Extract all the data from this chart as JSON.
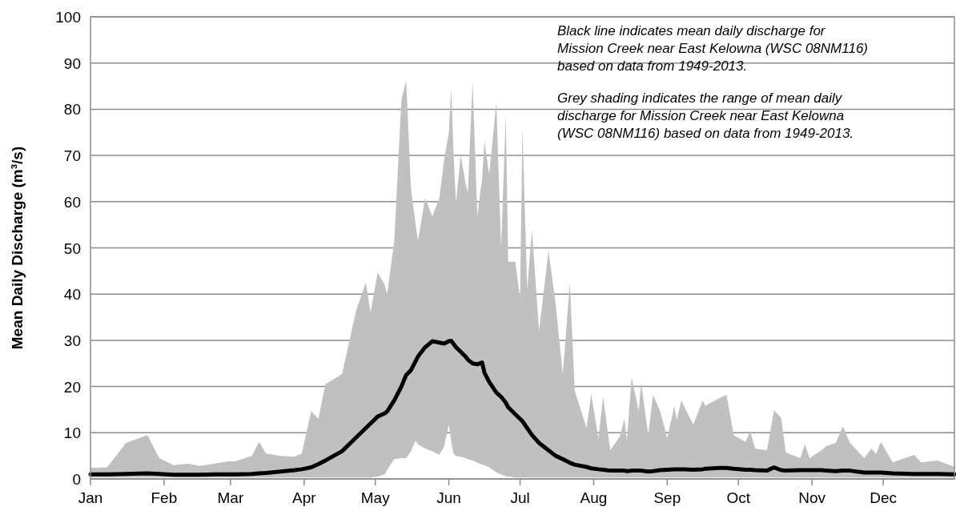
{
  "chart_data": {
    "type": "line",
    "ylabel": "Mean Daily Discharge (m³/s)",
    "annotations": [
      "Black line indicates mean daily discharge for Mission Creek near East Kelowna (WSC 08NM116) based on data from 1949-2013.",
      "Grey shading indicates the range of mean daily discharge for Mission Creek near East Kelowna (WSC 08NM116) based on data from 1949-2013."
    ],
    "xlim": [
      "--01-01",
      "--12-31"
    ],
    "xticks": [
      {
        "value": "--01-01",
        "label": "Jan"
      },
      {
        "value": "--02-01",
        "label": "Feb"
      },
      {
        "value": "--03-01",
        "label": "Mar"
      },
      {
        "value": "--04-01",
        "label": "Apr"
      },
      {
        "value": "--05-01",
        "label": "May"
      },
      {
        "value": "--06-01",
        "label": "Jun"
      },
      {
        "value": "--07-01",
        "label": "Jul"
      },
      {
        "value": "--08-01",
        "label": "Aug"
      },
      {
        "value": "--09-01",
        "label": "Sep"
      },
      {
        "value": "--10-01",
        "label": "Oct"
      },
      {
        "value": "--11-01",
        "label": "Nov"
      },
      {
        "value": "--12-01",
        "label": "Dec"
      }
    ],
    "ylim": [
      0,
      100
    ],
    "yticks": [
      0,
      10,
      20,
      30,
      40,
      50,
      60,
      70,
      80,
      90,
      100
    ],
    "grid": "y",
    "marker": "none",
    "line_style": "solid",
    "series": [
      {
        "color": "#000000",
        "x": [
          "--01-01",
          "--01-08",
          "--01-16",
          "--01-25",
          "--01-30",
          "--02-05",
          "--02-11",
          "--02-16",
          "--02-22",
          "--02-28",
          "--03-03",
          "--03-10",
          "--03-13",
          "--03-16",
          "--03-22",
          "--03-28",
          "--03-31",
          "--04-04",
          "--04-07",
          "--04-10",
          "--04-17",
          "--04-23",
          "--04-27",
          "--04-29",
          "--05-02",
          "--05-05",
          "--05-06",
          "--05-09",
          "--05-12",
          "--05-14",
          "--05-16",
          "--05-18",
          "--05-19",
          "--05-22",
          "--05-25",
          "--05-28",
          "--05-30",
          "--06-01",
          "--06-02",
          "--06-03",
          "--06-04",
          "--06-06",
          "--06-08",
          "--06-09",
          "--06-11",
          "--06-13",
          "--06-15",
          "--06-16",
          "--06-18",
          "--06-21",
          "--06-23",
          "--06-25",
          "--06-26",
          "--06-29",
          "--07-01",
          "--07-02",
          "--07-04",
          "--07-06",
          "--07-09",
          "--07-13",
          "--07-16",
          "--07-19",
          "--07-22",
          "--07-24",
          "--07-29",
          "--07-31",
          "--08-03",
          "--08-05",
          "--08-08",
          "--08-12",
          "--08-14",
          "--08-15",
          "--08-17",
          "--08-20",
          "--08-21",
          "--08-24",
          "--08-26",
          "--08-29",
          "--09-01",
          "--09-04",
          "--09-05",
          "--09-07",
          "--09-08",
          "--09-12",
          "--09-16",
          "--09-17",
          "--09-23",
          "--09-26",
          "--09-29",
          "--10-04",
          "--10-06",
          "--10-08",
          "--10-13",
          "--10-16",
          "--10-19",
          "--10-21",
          "--10-27",
          "--10-29",
          "--10-31",
          "--11-05",
          "--11-07",
          "--11-11",
          "--11-14",
          "--11-17",
          "--11-23",
          "--11-26",
          "--11-28",
          "--11-30",
          "--12-05",
          "--12-14",
          "--12-17",
          "--12-24",
          "--12-31"
        ],
        "values": [
          1,
          1,
          1.1,
          1.2,
          1.1,
          0.9,
          0.9,
          0.9,
          1,
          1,
          1,
          1.1,
          1.2,
          1.3,
          1.6,
          1.9,
          2.1,
          2.5,
          3.2,
          4,
          6,
          9,
          11,
          12,
          13.5,
          14.2,
          14.6,
          17,
          20,
          22.5,
          23.5,
          25.5,
          26.5,
          28.5,
          29.8,
          29.5,
          29.3,
          29.8,
          29.9,
          29.2,
          28.5,
          27.5,
          26.5,
          25.8,
          25,
          24.8,
          25.2,
          23,
          21,
          18.7,
          17.8,
          16.5,
          15.5,
          14,
          13,
          12.5,
          11,
          9.5,
          7.8,
          6.2,
          5,
          4.3,
          3.5,
          3.1,
          2.6,
          2.3,
          2.1,
          2,
          1.8,
          1.8,
          1.8,
          1.7,
          1.8,
          1.8,
          1.8,
          1.6,
          1.7,
          1.9,
          2,
          2.1,
          2.1,
          2.1,
          2.1,
          2,
          2.1,
          2.2,
          2.4,
          2.4,
          2.2,
          2,
          2,
          1.9,
          1.8,
          2.5,
          1.9,
          1.8,
          1.9,
          1.9,
          1.9,
          1.9,
          1.8,
          1.7,
          1.8,
          1.8,
          1.4,
          1.4,
          1.4,
          1.4,
          1.2,
          1.1,
          1.1,
          1.1,
          1
        ],
        "upper": [
          2.4,
          2.5,
          7.8,
          9.5,
          4.5,
          3,
          3.3,
          2.8,
          3.3,
          3.8,
          3.8,
          5,
          8,
          5.5,
          5,
          4.8,
          5.5,
          14.7,
          13,
          20.5,
          22.7,
          36.6,
          42.5,
          36,
          44.7,
          42,
          40,
          51.6,
          82,
          86.3,
          63,
          55,
          51.6,
          60.8,
          56.8,
          60.8,
          69,
          75,
          84.6,
          70,
          59.8,
          70,
          64,
          62,
          86,
          57,
          65,
          73,
          66,
          81.6,
          50,
          78.8,
          47,
          47,
          39,
          76,
          41,
          53.9,
          32,
          49.4,
          37.8,
          22.7,
          42.5,
          19.2,
          11,
          18.4,
          8.8,
          17.8,
          6.2,
          9.2,
          13,
          8.3,
          22,
          14.7,
          20.8,
          9.5,
          18.2,
          14.7,
          8.8,
          15.8,
          12.7,
          17,
          15.8,
          11.8,
          17,
          15.8,
          17.5,
          18.2,
          9.5,
          8,
          10.4,
          6.6,
          6.2,
          14.9,
          13.2,
          5.7,
          4.5,
          7.5,
          4.5,
          6.2,
          7.1,
          7.8,
          11.4,
          7.8,
          4.5,
          6.6,
          5.4,
          8,
          3.6,
          5.2,
          3.6,
          4,
          2.6
        ],
        "lower": [
          0.3,
          0.3,
          0.3,
          0.3,
          0.3,
          0.3,
          0.3,
          0.3,
          0.3,
          0.3,
          0.3,
          0.3,
          0.3,
          0.3,
          0.3,
          0.3,
          0.3,
          0.3,
          0.3,
          0.3,
          0.3,
          0.3,
          0.3,
          0.3,
          0.5,
          1,
          2,
          4.3,
          4.5,
          4.5,
          6,
          8.3,
          7.5,
          6.6,
          6,
          5.2,
          7,
          11.8,
          8,
          5.4,
          5,
          4.8,
          4.5,
          4.3,
          4,
          3.5,
          3.1,
          3,
          2.5,
          1.4,
          1,
          0.6,
          0.5,
          0.3,
          0.3,
          0.3,
          0.3,
          0.3,
          0.3,
          0.3,
          0.3,
          0.3,
          0.3,
          0.3,
          0.3,
          0.3,
          0.3,
          0.3,
          0.3,
          0.3,
          0.3,
          0.3,
          0.3,
          0.3,
          0.3,
          0.3,
          0.3,
          0.3,
          0.3,
          0.3,
          0.3,
          0.3,
          0.3,
          0.3,
          0.3,
          0.3,
          0.3,
          0.3,
          0.3,
          0.3,
          0.3,
          0.3,
          0.3,
          0.3,
          0.3,
          0.3,
          0.3,
          0.3,
          0.3,
          0.3,
          0.3,
          0.3,
          0.3,
          0.3,
          0.3,
          0.3,
          0.3,
          0.3,
          0.3,
          0.3,
          0.3,
          0.3,
          0.3
        ]
      }
    ]
  }
}
